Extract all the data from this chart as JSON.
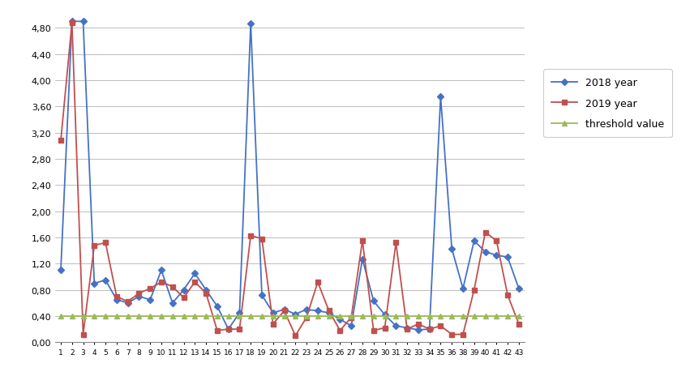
{
  "x_labels": [
    "1",
    "2",
    "3",
    "4",
    "5",
    "6",
    "7",
    "8",
    "9",
    "10",
    "11",
    "12",
    "13",
    "14",
    "15",
    "16",
    "17",
    "18",
    "19",
    "20",
    "21",
    "22",
    "23",
    "24",
    "25",
    "26",
    "27",
    "28",
    "29",
    "30",
    "31",
    "32",
    "33",
    "34",
    "35",
    "36",
    "38",
    "39",
    "40",
    "41",
    "42",
    "43"
  ],
  "year2018": [
    1.1,
    4.9,
    4.9,
    0.9,
    0.95,
    0.65,
    0.6,
    0.7,
    0.65,
    1.1,
    0.6,
    0.8,
    1.05,
    0.8,
    0.55,
    0.2,
    0.45,
    4.87,
    0.72,
    0.45,
    0.5,
    0.43,
    0.5,
    0.48,
    0.45,
    0.35,
    0.25,
    1.27,
    0.63,
    0.42,
    0.25,
    0.22,
    0.19,
    0.2,
    3.75,
    1.43,
    0.82,
    1.55,
    1.38,
    1.33,
    1.3,
    0.82
  ],
  "year2019": [
    3.08,
    4.88,
    0.12,
    1.48,
    1.52,
    0.7,
    0.62,
    0.75,
    0.82,
    0.92,
    0.85,
    0.68,
    0.92,
    0.75,
    0.18,
    0.2,
    0.2,
    1.63,
    1.58,
    0.28,
    0.48,
    0.1,
    0.38,
    0.92,
    0.48,
    0.18,
    0.38,
    1.55,
    0.18,
    0.22,
    1.52,
    0.2,
    0.28,
    0.2,
    0.25,
    0.12,
    0.12,
    0.8,
    1.68,
    1.55,
    0.72,
    0.28
  ],
  "threshold": 0.4,
  "line2018_color": "#4472C4",
  "line2019_color": "#C0504D",
  "threshold_color": "#9BBB59",
  "ylim": [
    0,
    5.0
  ],
  "yticks": [
    0.0,
    0.4,
    0.8,
    1.2,
    1.6,
    2.0,
    2.4,
    2.8,
    3.2,
    3.6,
    4.0,
    4.4,
    4.8
  ],
  "background_color": "#FFFFFF",
  "legend_labels": [
    "2018 year",
    "2019 year",
    "threshold value"
  ],
  "fig_bg": "#E8E8E8"
}
